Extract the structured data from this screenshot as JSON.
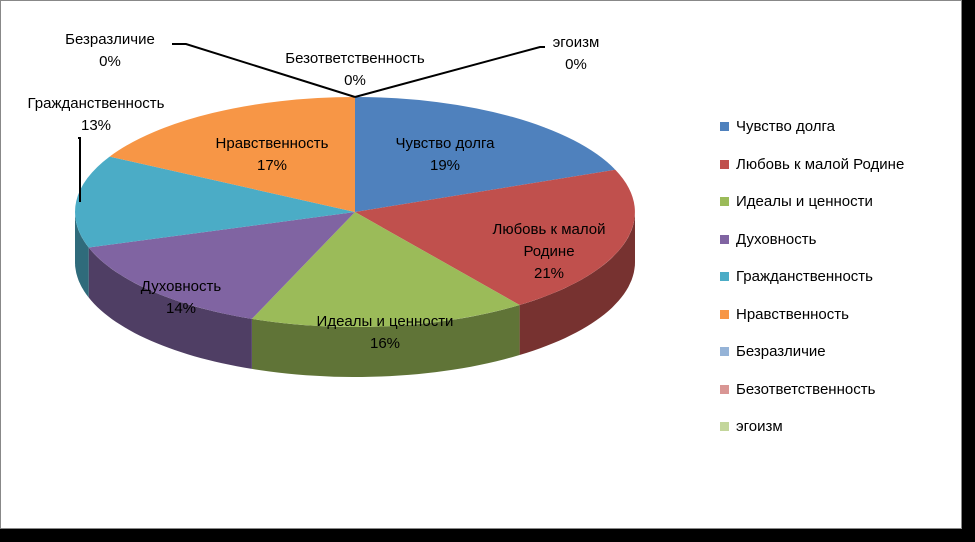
{
  "chart_data": {
    "type": "pie",
    "variant": "3d",
    "series": [
      {
        "name": "Чувство долга",
        "value": 19,
        "color": "#4f81bd",
        "label_lines": [
          "Чувство долга",
          "19%"
        ]
      },
      {
        "name": "Любовь к малой Родине",
        "value": 21,
        "color": "#c0504d",
        "label_lines": [
          "Любовь к малой",
          "Родине",
          "21%"
        ]
      },
      {
        "name": "Идеалы и ценности",
        "value": 16,
        "color": "#9bbb59",
        "label_lines": [
          "Идеалы и ценности",
          "16%"
        ]
      },
      {
        "name": "Духовность",
        "value": 14,
        "color": "#8064a2",
        "label_lines": [
          "Духовность",
          "14%"
        ]
      },
      {
        "name": "Гражданственность",
        "value": 13,
        "color": "#4bacc6",
        "label_lines": [
          "Гражданственность",
          "13%"
        ]
      },
      {
        "name": "Нравственность",
        "value": 17,
        "color": "#f79646",
        "label_lines": [
          "Нравственность",
          "17%"
        ]
      },
      {
        "name": "Безразличие",
        "value": 0,
        "color": "#95b3d7",
        "label_lines": [
          "Безразличие",
          "0%"
        ]
      },
      {
        "name": "Безответственность",
        "value": 0,
        "color": "#d99694",
        "label_lines": [
          "Безответственность",
          "0%"
        ]
      },
      {
        "name": "эгоизм",
        "value": 0,
        "color": "#c3d69b",
        "label_lines": [
          "эгоизм",
          "0%"
        ]
      }
    ],
    "legend_position": "right"
  }
}
